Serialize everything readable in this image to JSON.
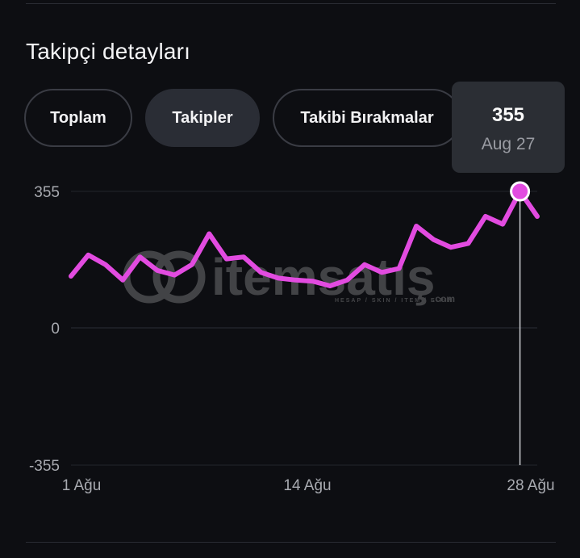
{
  "title": "Takipçi detayları",
  "tabs": [
    {
      "label": "Toplam",
      "active": false
    },
    {
      "label": "Takipler",
      "active": true
    },
    {
      "label": "Takibi Bırakmalar",
      "active": false
    }
  ],
  "tooltip": {
    "value": "355",
    "date": "Aug 27"
  },
  "watermark": {
    "brand": "itemsatış",
    "tagline": "HESAP / SKIN / ITEM / E-PIN",
    "suffix": ".com"
  },
  "colors": {
    "line": "#e24be0",
    "marker": "#e24be0",
    "background": "#0d0e12"
  },
  "chart_data": {
    "type": "line",
    "y_ticks": [
      "355",
      "0",
      "-355"
    ],
    "ylim": [
      -355,
      355
    ],
    "x_tick_labels": [
      "1 Ağu",
      "14 Ağu",
      "28 Ağu"
    ],
    "x_tick_days": [
      1,
      14,
      28
    ],
    "x_days": [
      1,
      2,
      3,
      4,
      5,
      6,
      7,
      8,
      9,
      10,
      11,
      12,
      13,
      14,
      15,
      16,
      17,
      18,
      19,
      20,
      21,
      22,
      23,
      24,
      25,
      26,
      27,
      28
    ],
    "values": [
      135,
      190,
      165,
      125,
      185,
      150,
      138,
      165,
      245,
      180,
      185,
      145,
      130,
      125,
      122,
      110,
      125,
      165,
      145,
      155,
      265,
      230,
      210,
      220,
      290,
      270,
      355,
      290
    ],
    "highlight": {
      "day": 27,
      "value": 355
    }
  }
}
